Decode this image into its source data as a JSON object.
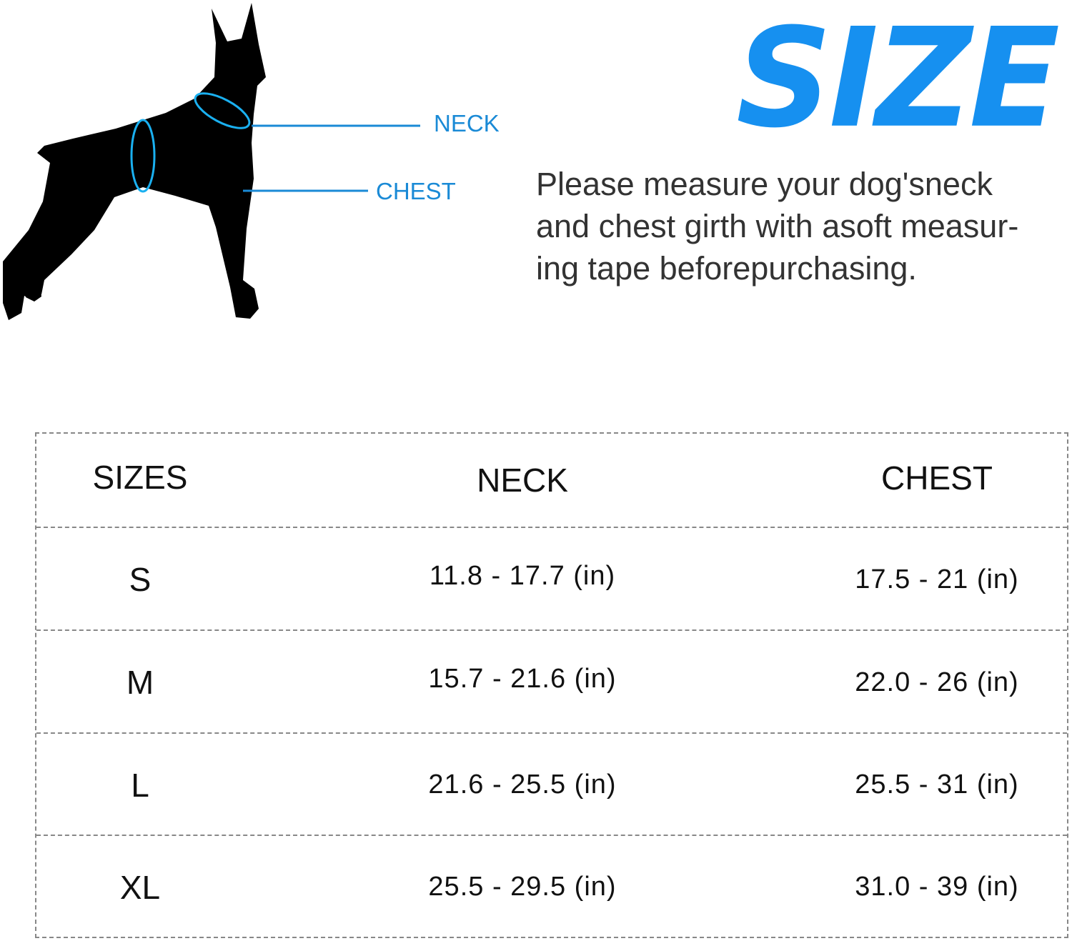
{
  "diagram": {
    "neck_label": "NECK",
    "chest_label": "CHEST",
    "measure_line_color": "#1a8ad6"
  },
  "heading": {
    "title": "SIZE",
    "color": "#1690f0"
  },
  "instructions": {
    "lines": [
      "Please measure your dog'sneck",
      "and chest girth with asoft measur-",
      "ing tape beforepurchasing."
    ]
  },
  "size_table": {
    "headers": [
      "SIZES",
      "NECK",
      "CHEST"
    ],
    "rows": [
      [
        "S",
        "11.8 - 17.7 (in)",
        "17.5 - 21 (in)"
      ],
      [
        "M",
        "15.7 - 21.6 (in)",
        "22.0 - 26 (in)"
      ],
      [
        "L",
        "21.6 - 25.5 (in)",
        "25.5 - 31 (in)"
      ],
      [
        "XL",
        "25.5 - 29.5 (in)",
        "31.0 - 39 (in)"
      ]
    ]
  }
}
